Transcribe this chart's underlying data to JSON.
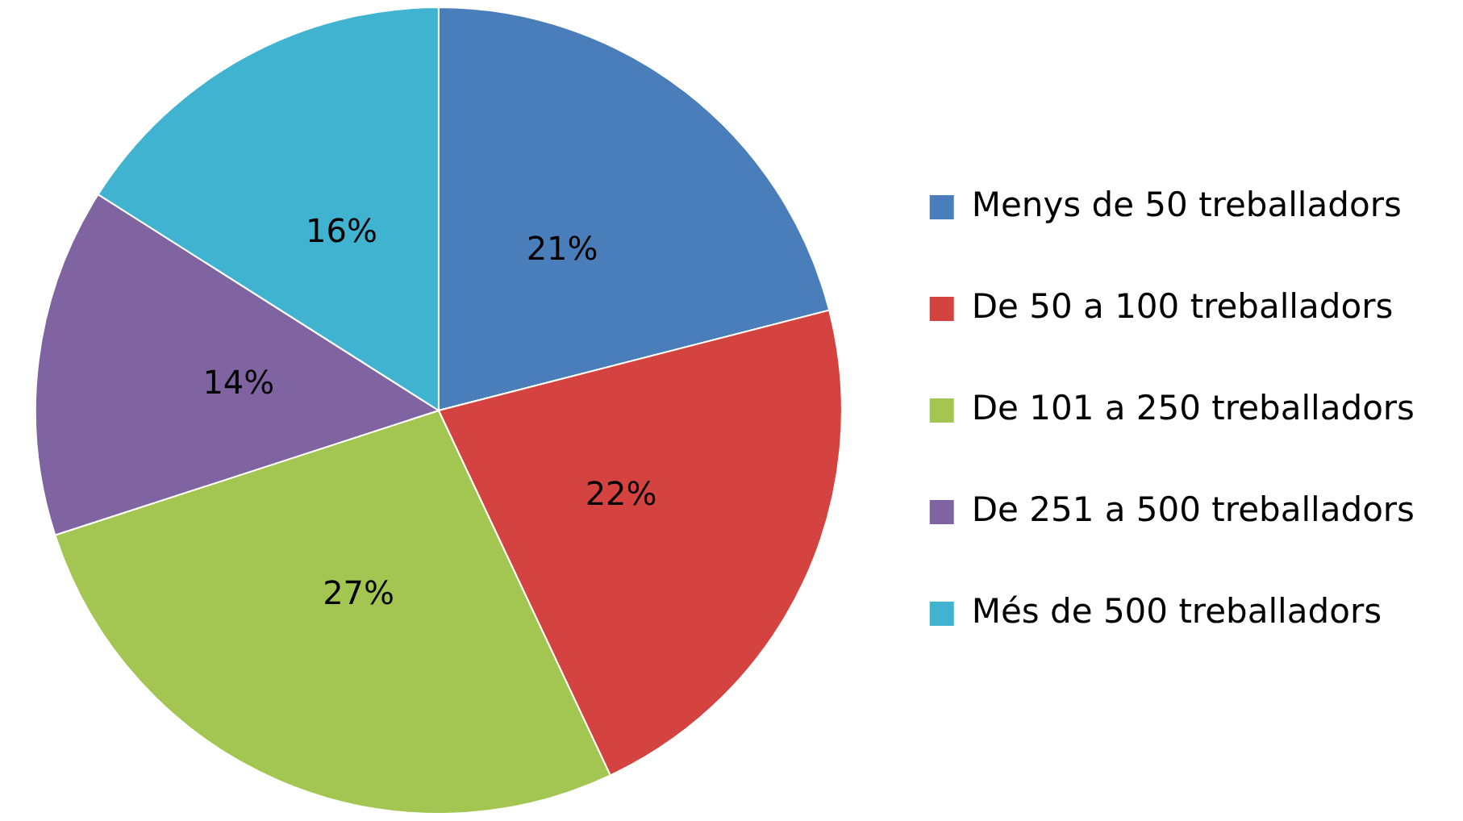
{
  "chart_data": {
    "type": "pie",
    "categories": [
      "Menys de 50 treballadors",
      "De 50 a 100 treballadors",
      "De 101 a 250 treballadors",
      "De 251 a 500 treballadors",
      "Més de 500 treballadors"
    ],
    "values": [
      21,
      22,
      27,
      14,
      16
    ],
    "value_labels": [
      "21%",
      "22%",
      "27%",
      "14%",
      "16%"
    ],
    "colors": [
      "#4a7ebb",
      "#d4433f",
      "#a3c552",
      "#8064a2",
      "#3fb3d0"
    ],
    "legend": "right"
  }
}
